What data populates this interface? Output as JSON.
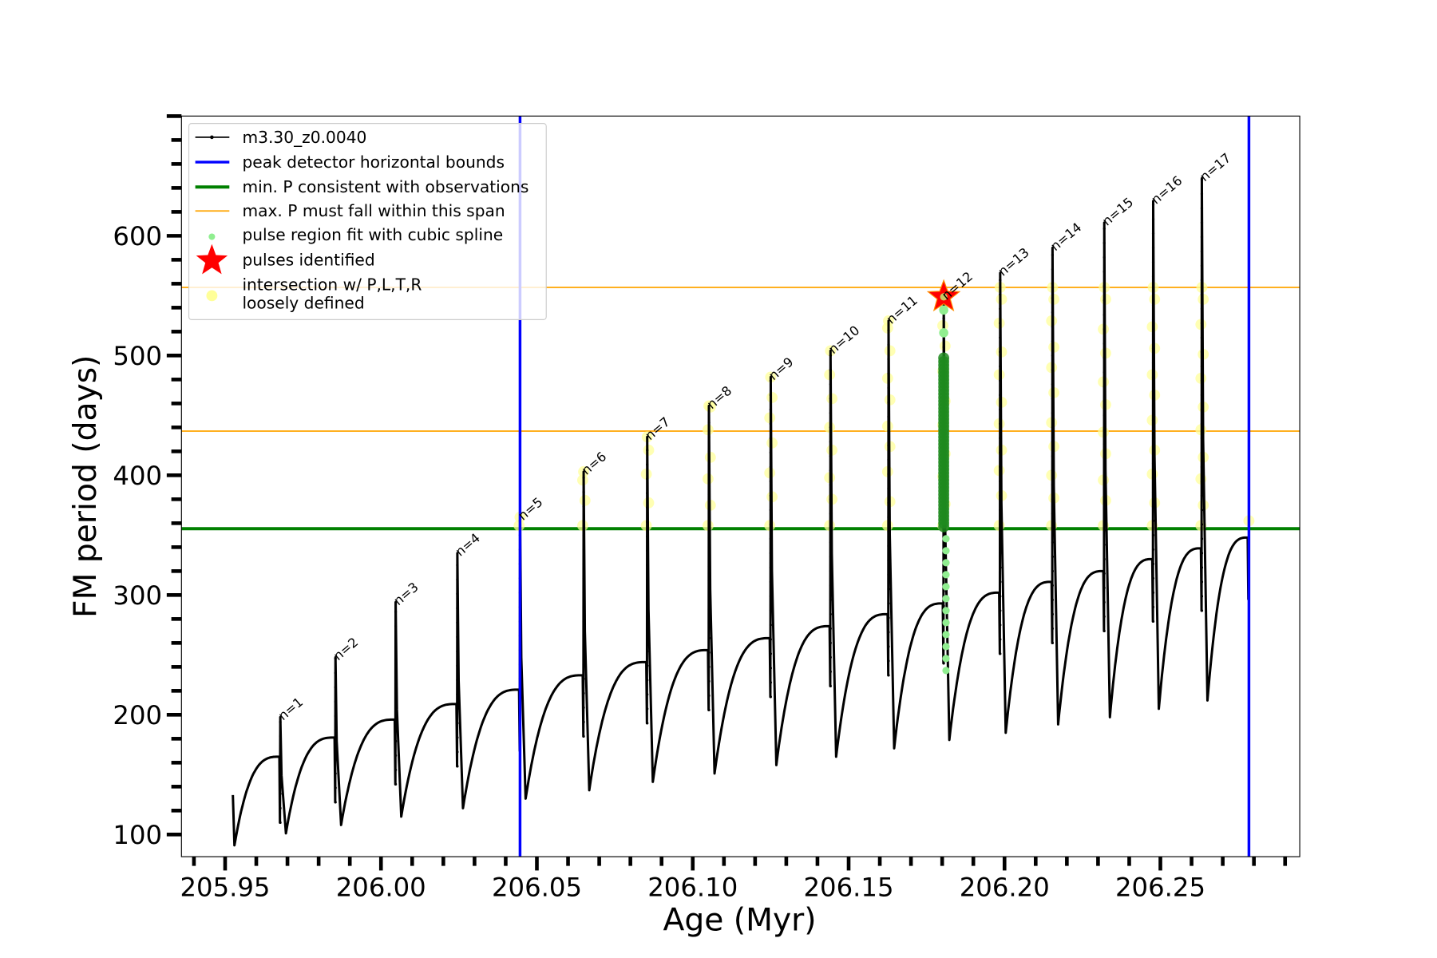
{
  "chart_data": {
    "type": "line",
    "xlabel": "Age (Myr)",
    "ylabel": "FM period (days)",
    "xlim": [
      205.936,
      206.2947
    ],
    "ylim": [
      81.5,
      700
    ],
    "x_ticks": [
      205.95,
      206.0,
      206.05,
      206.1,
      206.15,
      206.2,
      206.25
    ],
    "x_tick_labels": [
      "205.95",
      "206.00",
      "206.05",
      "206.10",
      "206.15",
      "206.20",
      "206.25"
    ],
    "x_minor_step": 0.01,
    "y_ticks": [
      100,
      200,
      300,
      400,
      500,
      600
    ],
    "y_tick_labels": [
      "100",
      "200",
      "300",
      "400",
      "500",
      "600"
    ],
    "y_minor_step": 20,
    "grid": false,
    "legend_placement": "upper-left",
    "legend": [
      {
        "label": "m3.30_z0.0040",
        "kind": "line-dot",
        "color": "#000000"
      },
      {
        "label": "peak detector horizontal bounds",
        "kind": "line",
        "color": "#0000ff"
      },
      {
        "label": "min. P consistent with observations",
        "kind": "line-thick",
        "color": "#008000"
      },
      {
        "label": "max. P must fall within this span",
        "kind": "line-thin",
        "color": "#ffa500"
      },
      {
        "label": "pulse region fit with cubic spline",
        "kind": "dot",
        "color": "#90ee90"
      },
      {
        "label": "pulses identified",
        "kind": "star",
        "color": "#ff0000"
      },
      {
        "label": "intersection w/ P,L,T,R",
        "label2": "loosely defined",
        "kind": "circle",
        "color": "#ffff99"
      }
    ],
    "series_start": {
      "age": 205.9525,
      "value": 133,
      "min": 91
    },
    "series_end": {
      "age": 206.278,
      "plateau": 348,
      "final": 296
    },
    "pulses": [
      {
        "label": "n=1",
        "age": 205.9677,
        "plateau": 165,
        "drop": 110,
        "peak": 198,
        "min": 101
      },
      {
        "label": "n=2",
        "age": 205.9854,
        "plateau": 181,
        "drop": 127,
        "peak": 248,
        "min": 108
      },
      {
        "label": "n=3",
        "age": 206.0047,
        "plateau": 196,
        "drop": 142,
        "peak": 294,
        "min": 115
      },
      {
        "label": "n=4",
        "age": 206.0245,
        "plateau": 209,
        "drop": 157,
        "peak": 335,
        "min": 122
      },
      {
        "label": "n=5",
        "age": 206.0446,
        "plateau": 221,
        "drop": 170,
        "peak": 365,
        "min": 130
      },
      {
        "label": "n=6",
        "age": 206.065,
        "plateau": 233,
        "drop": 182,
        "peak": 403,
        "min": 137
      },
      {
        "label": "n=7",
        "age": 206.0854,
        "plateau": 244,
        "drop": 193,
        "peak": 432,
        "min": 144
      },
      {
        "label": "n=8",
        "age": 206.1052,
        "plateau": 254,
        "drop": 204,
        "peak": 458,
        "min": 151
      },
      {
        "label": "n=9",
        "age": 206.125,
        "plateau": 264,
        "drop": 215,
        "peak": 482,
        "min": 158
      },
      {
        "label": "n=10",
        "age": 206.1442,
        "plateau": 274,
        "drop": 224,
        "peak": 504,
        "min": 165
      },
      {
        "label": "n=11",
        "age": 206.1628,
        "plateau": 284,
        "drop": 233,
        "peak": 529,
        "min": 172
      },
      {
        "label": "n=12",
        "age": 206.1805,
        "plateau": 293,
        "drop": 243,
        "peak": 549,
        "min": 179
      },
      {
        "label": "n=13",
        "age": 206.1986,
        "plateau": 302,
        "drop": 251,
        "peak": 569,
        "min": 185
      },
      {
        "label": "n=14",
        "age": 206.2154,
        "plateau": 311,
        "drop": 260,
        "peak": 590,
        "min": 192
      },
      {
        "label": "n=15",
        "age": 206.232,
        "plateau": 320,
        "drop": 270,
        "peak": 611,
        "min": 198
      },
      {
        "label": "n=16",
        "age": 206.2477,
        "plateau": 330,
        "drop": 278,
        "peak": 629,
        "min": 205
      },
      {
        "label": "n=17",
        "age": 206.2633,
        "plateau": 339,
        "drop": 287,
        "peak": 648,
        "min": 212
      }
    ],
    "vertical_bounds": [
      206.0446,
      206.2784
    ],
    "min_P_line": 355.4,
    "max_P_span": [
      436.9,
      556.9
    ],
    "pulse_identified": {
      "label": "n=12",
      "age": 206.1805,
      "value": 549
    },
    "spline_fit_range": {
      "pulse": "n=12",
      "from": 237,
      "to": 500
    },
    "intersection_min_pulse": 5,
    "extra_intersection": {
      "age": 206.2784,
      "value": 362
    }
  },
  "colors": {
    "curve": "#000000",
    "bounds": "#0000ff",
    "minP": "#008000",
    "maxP": "#ffa500",
    "spline": "#90ee90",
    "spline_dark": "#1e8a1e",
    "star": "#ff0000",
    "intersect": "#ffff99"
  }
}
